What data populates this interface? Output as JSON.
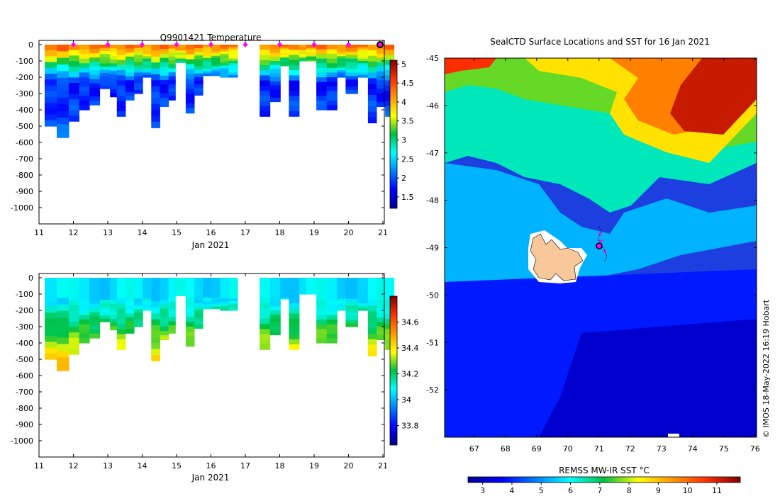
{
  "chart_data": [
    {
      "type": "heatmap",
      "name": "temperature-section",
      "title": "Q9901421  Temperature",
      "xlabel": "Jan 2021",
      "x_ticks": [
        "11",
        "12",
        "13",
        "14",
        "15",
        "16",
        "17",
        "18",
        "19",
        "20",
        "21"
      ],
      "xlim": [
        11,
        21
      ],
      "y_ticks": [
        "0",
        "-100",
        "-200",
        "-300",
        "-400",
        "-500",
        "-600",
        "-700",
        "-800",
        "-900",
        "-1000"
      ],
      "ylim": [
        -1100,
        0
      ],
      "colorbar_ticks": [
        "1.5",
        "2",
        "2.5",
        "3",
        "3.5",
        "4",
        "4.5",
        "5"
      ],
      "colorbar_range": [
        1.2,
        5.1
      ],
      "profile_markers": [
        12,
        13,
        14,
        15,
        16,
        17,
        18,
        19,
        20
      ],
      "current_marker": 21,
      "profiles": [
        {
          "day": 11.0,
          "depth": 500
        },
        {
          "day": 11.35,
          "depth": 570
        },
        {
          "day": 11.7,
          "depth": 470
        },
        {
          "day": 12.0,
          "depth": 400
        },
        {
          "day": 12.3,
          "depth": 370
        },
        {
          "day": 12.6,
          "depth": 270
        },
        {
          "day": 12.9,
          "depth": 320
        },
        {
          "day": 13.1,
          "depth": 440
        },
        {
          "day": 13.35,
          "depth": 340
        },
        {
          "day": 13.6,
          "depth": 300
        },
        {
          "day": 13.85,
          "depth": 200
        },
        {
          "day": 14.1,
          "depth": 510
        },
        {
          "day": 14.35,
          "depth": 380
        },
        {
          "day": 14.6,
          "depth": 340
        },
        {
          "day": 14.8,
          "depth": 110
        },
        {
          "day": 15.1,
          "depth": 420
        },
        {
          "day": 15.35,
          "depth": 310
        },
        {
          "day": 15.6,
          "depth": 190
        },
        {
          "day": 15.85,
          "depth": 190
        },
        {
          "day": 16.1,
          "depth": 200
        },
        {
          "day": 16.35,
          "depth": 200
        },
        {
          "day": 17.25,
          "depth": 440
        },
        {
          "day": 17.55,
          "depth": 350
        },
        {
          "day": 17.85,
          "depth": 130
        },
        {
          "day": 18.1,
          "depth": 440
        },
        {
          "day": 18.4,
          "depth": 100
        },
        {
          "day": 18.6,
          "depth": 100
        },
        {
          "day": 18.9,
          "depth": 400
        },
        {
          "day": 19.2,
          "depth": 400
        },
        {
          "day": 19.5,
          "depth": 200
        },
        {
          "day": 19.75,
          "depth": 300
        },
        {
          "day": 20.1,
          "depth": 200
        },
        {
          "day": 20.4,
          "depth": 480
        },
        {
          "day": 20.65,
          "depth": 380
        },
        {
          "day": 20.9,
          "depth": 440
        }
      ]
    },
    {
      "type": "heatmap",
      "name": "salinity-section",
      "title": "",
      "xlabel": "Jan 2021",
      "x_ticks": [
        "11",
        "12",
        "13",
        "14",
        "15",
        "16",
        "17",
        "18",
        "19",
        "20",
        "21"
      ],
      "xlim": [
        11,
        21
      ],
      "y_ticks": [
        "0",
        "-100",
        "-200",
        "-300",
        "-400",
        "-500",
        "-600",
        "-700",
        "-800",
        "-900",
        "-1000"
      ],
      "ylim": [
        -1100,
        0
      ],
      "colorbar_ticks": [
        "33.8",
        "34",
        "34.2",
        "34.4",
        "34.6"
      ],
      "colorbar_range": [
        33.65,
        34.8
      ]
    },
    {
      "type": "heatmap",
      "name": "sst-map",
      "title": "SealCTD Surface Locations and SST for 16 Jan 2021",
      "xlabel": "",
      "x_ticks": [
        "67",
        "68",
        "69",
        "70",
        "71",
        "72",
        "73",
        "74",
        "75",
        "76"
      ],
      "xlim": [
        66.05,
        76.05
      ],
      "y_ticks": [
        "-45",
        "-46",
        "-47",
        "-48",
        "-49",
        "-50",
        "-51",
        "-52"
      ],
      "ylim": [
        -53.0,
        -45.0
      ],
      "track_end": {
        "lon": 71.0,
        "lat": -48.95
      },
      "colorbar_label": "REMSS MW-IR SST °C",
      "colorbar_ticks": [
        "3",
        "4",
        "5",
        "6",
        "7",
        "8",
        "9",
        "10",
        "11"
      ],
      "colorbar_range": [
        2.5,
        11.8
      ],
      "credit": "© IMOS 18-May-2022 16:19 Hobart"
    }
  ]
}
